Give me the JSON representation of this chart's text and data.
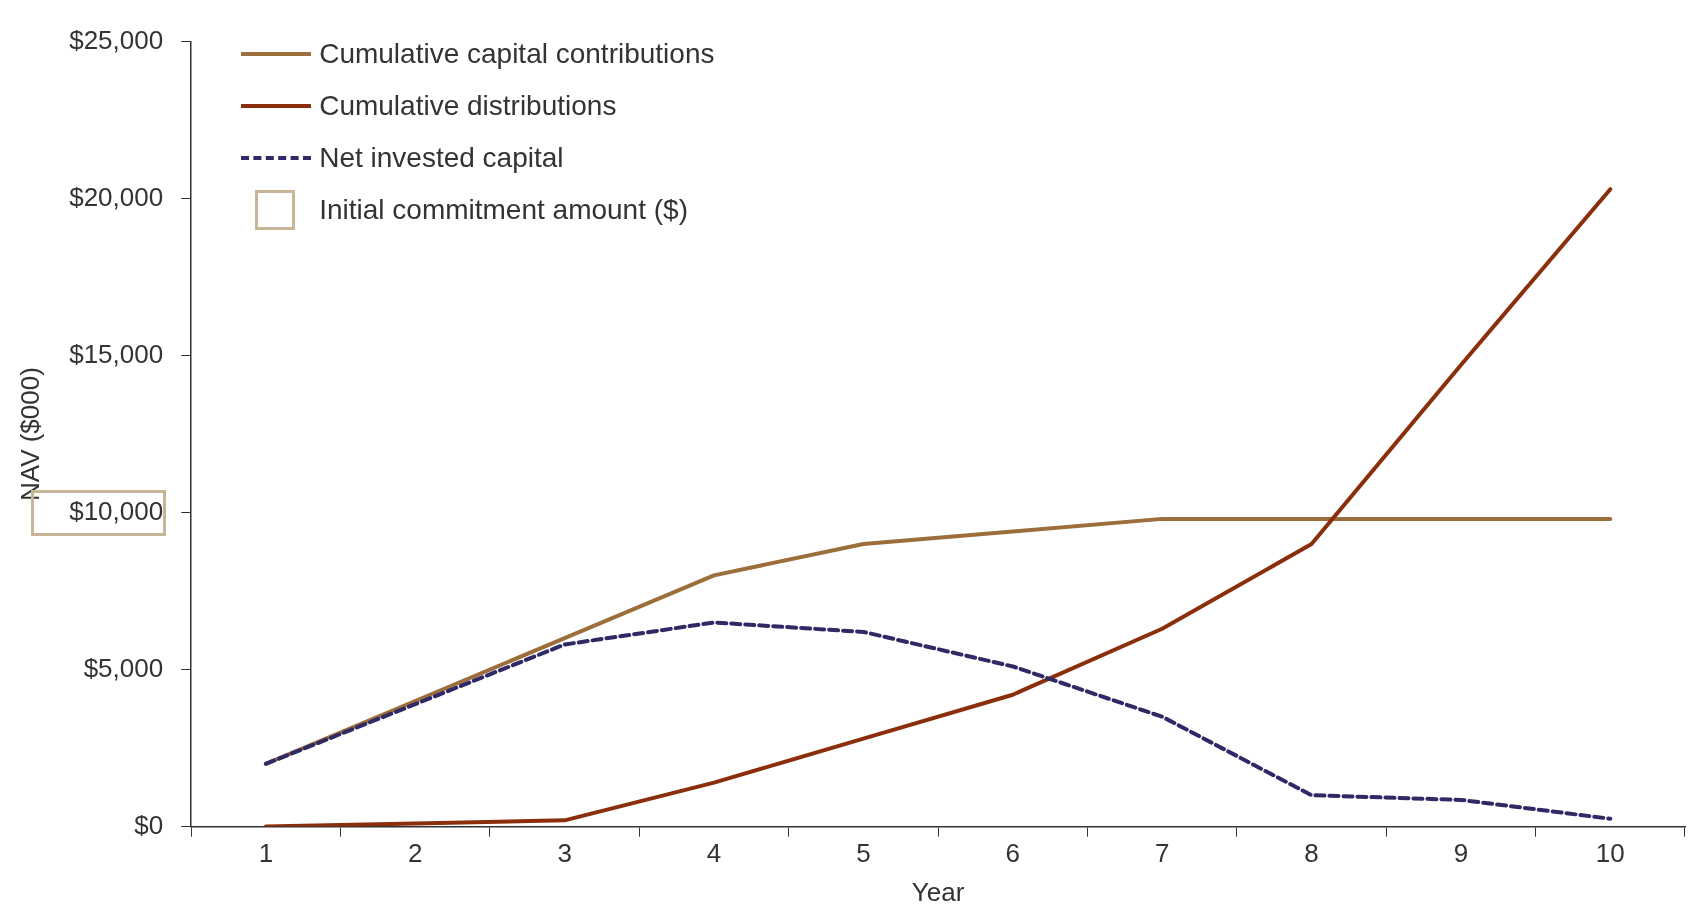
{
  "chart_data": {
    "type": "line",
    "xlabel": "Year",
    "ylabel": "NAV ($000)",
    "categories": [
      "1",
      "2",
      "3",
      "4",
      "5",
      "6",
      "7",
      "8",
      "9",
      "10"
    ],
    "series": [
      {
        "name": "Cumulative capital contributions",
        "color": "#9b6e3c",
        "values": [
          2000,
          4000,
          6000,
          8000,
          9000,
          9400,
          9800,
          9800,
          9800,
          9800
        ]
      },
      {
        "name": "Cumulative distributions",
        "color": "#8b2e0b",
        "values": [
          0,
          100,
          200,
          1400,
          2800,
          4200,
          6300,
          9000,
          14700,
          20300
        ]
      },
      {
        "name": "Net invested capital",
        "color": "#2f2a66",
        "line_style": "dashed",
        "values": [
          2000,
          3900,
          5800,
          6500,
          6200,
          5100,
          3500,
          1000,
          850,
          250
        ]
      }
    ],
    "ylim": [
      0,
      25000
    ],
    "yticks": [
      {
        "value": 0,
        "label": "$0"
      },
      {
        "value": 5000,
        "label": "$5,000"
      },
      {
        "value": 10000,
        "label": "$10,000"
      },
      {
        "value": 15000,
        "label": "$15,000"
      },
      {
        "value": 20000,
        "label": "$20,000"
      },
      {
        "value": 25000,
        "label": "$25,000"
      }
    ],
    "grid": false,
    "legend": "top left",
    "marker": "none",
    "annotations": [
      "Initial commitment amount ($)"
    ]
  }
}
